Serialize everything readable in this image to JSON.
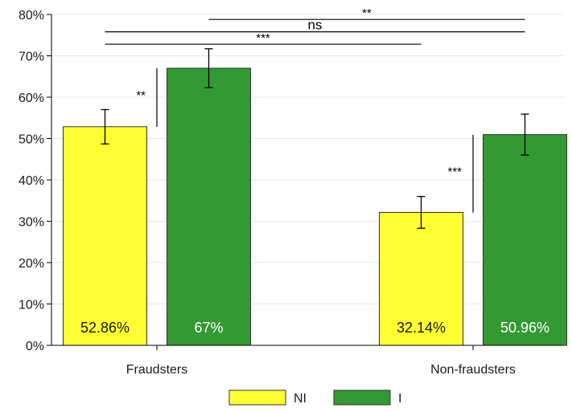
{
  "chart_data": {
    "type": "bar",
    "title": "",
    "xlabel": "",
    "ylabel": "",
    "categories": [
      "Fraudsters",
      "Non-fraudsters"
    ],
    "ylim": [
      0,
      80
    ],
    "yticks": [
      0,
      10,
      20,
      30,
      40,
      50,
      60,
      70,
      80
    ],
    "ytick_labels": [
      "0%",
      "10%",
      "20%",
      "30%",
      "40%",
      "50%",
      "60%",
      "70%",
      "80%"
    ],
    "grid": true,
    "legend_position": "bottom",
    "series": [
      {
        "name": "NI",
        "color": "#ffff33",
        "values": [
          52.86,
          32.14
        ],
        "value_labels": [
          "52.86%",
          "32.14%"
        ],
        "error_low": [
          48.7,
          28.3
        ],
        "error_high": [
          57.0,
          36.0
        ]
      },
      {
        "name": "I",
        "color": "#339933",
        "values": [
          67,
          50.96
        ],
        "value_labels": [
          "67%",
          "50.96%"
        ],
        "error_low": [
          62.3,
          46.0
        ],
        "error_high": [
          71.7,
          55.9
        ]
      }
    ],
    "significance": [
      {
        "label": "**",
        "type": "within",
        "category": 0,
        "y_from": 52.8,
        "y_to": 67
      },
      {
        "label": "***",
        "type": "within",
        "category": 1,
        "y_from": 32.1,
        "y_to": 50.9
      },
      {
        "label": "***",
        "type": "between",
        "from": [
          0,
          0
        ],
        "to": [
          1,
          0
        ],
        "y": 72.8
      },
      {
        "label": "ns",
        "type": "between",
        "from": [
          0,
          0
        ],
        "to": [
          1,
          1
        ],
        "y": 75.8
      },
      {
        "label": "**",
        "type": "between",
        "from": [
          0,
          1
        ],
        "to": [
          1,
          1
        ],
        "y": 78.8
      }
    ]
  }
}
